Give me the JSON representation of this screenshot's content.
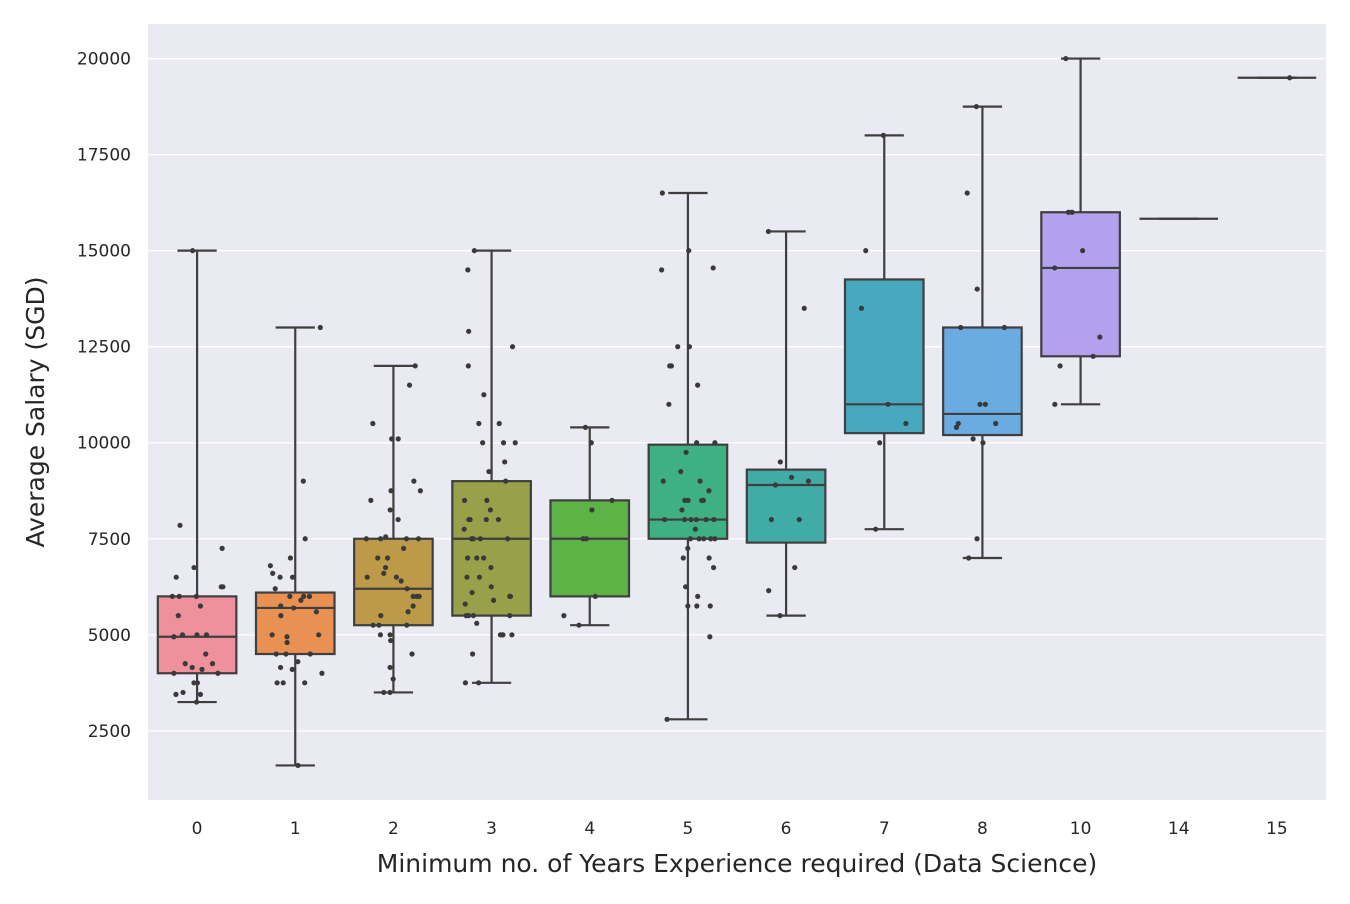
{
  "chart_data": {
    "type": "box",
    "title": "",
    "xlabel": "Minimum no. of Years Experience required (Data Science)",
    "ylabel": "Average Salary (SGD)",
    "ylim": [
      700,
      20900
    ],
    "yticks": [
      "2500",
      "5000",
      "7500",
      "10000",
      "12500",
      "15000",
      "17500",
      "20000"
    ],
    "grid": true,
    "legend": "none",
    "colors": {
      "background": "#eaeaf2",
      "grid": "#ffffff",
      "line": "#3f3f3f",
      "point": "#3a3a3a"
    },
    "categories": [
      "0",
      "1",
      "2",
      "3",
      "4",
      "5",
      "6",
      "7",
      "8",
      "10",
      "14",
      "15"
    ],
    "boxes": [
      {
        "category": "0",
        "color": "#ef919c",
        "whislo": 3250,
        "q1": 4000,
        "med": 4950,
        "q3": 6000,
        "whishi": 15000,
        "points": [
          3250,
          3450,
          3450,
          3500,
          3750,
          3750,
          4000,
          4000,
          4100,
          4150,
          4250,
          4250,
          4500,
          4950,
          5000,
          5000,
          5000,
          5500,
          5750,
          6000,
          6000,
          6000,
          6250,
          6250,
          6500,
          6750,
          7250,
          7850,
          15000
        ]
      },
      {
        "category": "1",
        "color": "#e99152",
        "whislo": 1600,
        "q1": 4500,
        "med": 5700,
        "q3": 6100,
        "whishi": 13000,
        "points": [
          1600,
          3750,
          3750,
          3750,
          4000,
          4100,
          4150,
          4300,
          4500,
          4500,
          4500,
          4800,
          4950,
          5000,
          5000,
          5500,
          5600,
          5700,
          5750,
          5900,
          6000,
          6000,
          6000,
          6200,
          6500,
          6500,
          6600,
          6800,
          7000,
          7500,
          9000,
          13000
        ]
      },
      {
        "category": "2",
        "color": "#bc9a48",
        "whislo": 3500,
        "q1": 5250,
        "med": 6200,
        "q3": 7500,
        "whishi": 12000,
        "points": [
          3500,
          3500,
          3850,
          4150,
          4500,
          4850,
          5000,
          5000,
          5250,
          5250,
          5250,
          5500,
          5600,
          5750,
          6000,
          6000,
          6000,
          6200,
          6400,
          6500,
          6500,
          6600,
          6750,
          7000,
          7000,
          7250,
          7500,
          7500,
          7500,
          7500,
          7550,
          8000,
          8250,
          8500,
          8750,
          8750,
          9000,
          10100,
          10100,
          10500,
          11500,
          12000
        ]
      },
      {
        "category": "3",
        "color": "#98a04a",
        "whislo": 3750,
        "q1": 5500,
        "med": 7500,
        "q3": 9000,
        "whishi": 15000,
        "points": [
          3750,
          3750,
          4500,
          5000,
          5000,
          5000,
          5000,
          5300,
          5500,
          5500,
          5500,
          5500,
          5800,
          5900,
          6000,
          6000,
          6100,
          6250,
          6500,
          6500,
          6750,
          7000,
          7000,
          7000,
          7500,
          7500,
          7500,
          7500,
          7750,
          8000,
          8000,
          8000,
          8000,
          8250,
          8500,
          8500,
          9000,
          9250,
          9500,
          10000,
          10000,
          10000,
          10500,
          10500,
          11250,
          12000,
          12500,
          12900,
          14500,
          15000
        ]
      },
      {
        "category": "4",
        "color": "#5db346",
        "whislo": 5250,
        "q1": 6000,
        "med": 7500,
        "q3": 8500,
        "whishi": 10400,
        "points": [
          5250,
          5500,
          6000,
          7500,
          7500,
          8250,
          8500,
          10000,
          10400
        ]
      },
      {
        "category": "5",
        "color": "#3fb082",
        "whislo": 2800,
        "q1": 7500,
        "med": 8000,
        "q3": 9950,
        "whishi": 16500,
        "points": [
          2800,
          4950,
          5750,
          5750,
          5750,
          6000,
          6250,
          6750,
          7000,
          7000,
          7250,
          7500,
          7500,
          7500,
          7500,
          7500,
          7750,
          8000,
          8000,
          8000,
          8000,
          8000,
          8000,
          8250,
          8500,
          8500,
          8500,
          8500,
          8750,
          9000,
          9000,
          9250,
          9750,
          10000,
          10000,
          11000,
          11500,
          12000,
          12000,
          12500,
          12500,
          14500,
          14550,
          15000,
          16500
        ]
      },
      {
        "category": "6",
        "color": "#41aba6",
        "whislo": 5500,
        "q1": 7400,
        "med": 8900,
        "q3": 9300,
        "whishi": 15500,
        "points": [
          5500,
          6150,
          6750,
          8000,
          8000,
          8900,
          9000,
          9100,
          9500,
          13500,
          15500
        ]
      },
      {
        "category": "7",
        "color": "#48a8bd",
        "whislo": 7750,
        "q1": 10250,
        "med": 11000,
        "q3": 14250,
        "whishi": 18000,
        "points": [
          7750,
          10000,
          10500,
          11000,
          13500,
          15000,
          18000
        ]
      },
      {
        "category": "8",
        "color": "#6aabe1",
        "whislo": 7000,
        "q1": 10200,
        "med": 10750,
        "q3": 13000,
        "whishi": 18750,
        "points": [
          7000,
          7500,
          10000,
          10100,
          10400,
          10500,
          10500,
          11000,
          11000,
          13000,
          13000,
          14000,
          16500,
          18750
        ]
      },
      {
        "category": "10",
        "color": "#b4a1ee",
        "whislo": 11000,
        "q1": 12250,
        "med": 14550,
        "q3": 16000,
        "whishi": 20000,
        "points": [
          11000,
          12000,
          12250,
          12750,
          14550,
          15000,
          16000,
          16000,
          20000
        ]
      },
      {
        "category": "14",
        "color": "#d691e4",
        "whislo": 15830,
        "q1": 15830,
        "med": 15830,
        "q3": 15830,
        "whishi": 15830,
        "points": []
      },
      {
        "category": "15",
        "color": "#ee8fc6",
        "whislo": 19500,
        "q1": 19500,
        "med": 19500,
        "q3": 19500,
        "whishi": 19500,
        "points": [
          19500
        ]
      }
    ]
  }
}
